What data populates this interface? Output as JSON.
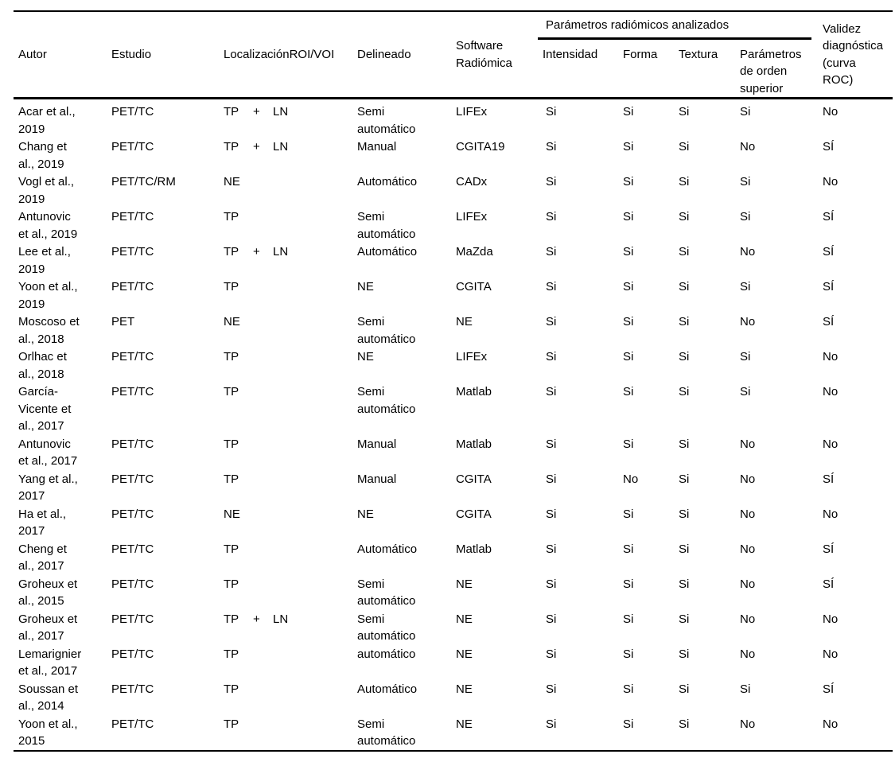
{
  "colors": {
    "text": "#000000",
    "rule": "#000000",
    "background": "#ffffff"
  },
  "table": {
    "headers": {
      "autor": "Autor",
      "estudio": "Estudio",
      "localizacion": "Localización",
      "roi_voi": "ROI/VOI",
      "delineado": "Delineado",
      "software": "Software\nRadiómica",
      "group": "Parámetros radiómicos analizados",
      "intensidad": "Intensidad",
      "forma": "Forma",
      "textura": "Textura",
      "orden_superior": "Parámetros\nde orden\nsuperior",
      "validez": "Validez\ndiagnóstica\n(curva\nROC)"
    },
    "rows": [
      {
        "autor": "Acar et al.,\n2019",
        "estudio": "PET/TC",
        "tp": "TP",
        "plus": "+",
        "ln": "LN",
        "delineado": "Semi\nautomático",
        "software": "LIFEx",
        "intensidad": "Si",
        "forma": "Si",
        "textura": "Si",
        "orden": "Si",
        "validez": "No"
      },
      {
        "autor": "Chang et\nal., 2019",
        "estudio": "PET/TC",
        "tp": "TP",
        "plus": "+",
        "ln": "LN",
        "delineado": "Manual",
        "software": "CGITA19",
        "intensidad": "Si",
        "forma": "Si",
        "textura": "Si",
        "orden": "No",
        "validez": "SÍ"
      },
      {
        "autor": "Vogl et al.,\n2019",
        "estudio": "PET/TC/RM",
        "tp": "NE",
        "plus": "",
        "ln": "",
        "delineado": "Automático",
        "software": "CADx",
        "intensidad": "Si",
        "forma": "Si",
        "textura": "Si",
        "orden": "Si",
        "validez": "No"
      },
      {
        "autor": "Antunovic\net al., 2019",
        "estudio": "PET/TC",
        "tp": "TP",
        "plus": "",
        "ln": "",
        "delineado": "Semi\nautomático",
        "software": "LIFEx",
        "intensidad": "Si",
        "forma": "Si",
        "textura": "Si",
        "orden": "Si",
        "validez": "SÍ"
      },
      {
        "autor": "Lee et al.,\n2019",
        "estudio": "PET/TC",
        "tp": "TP",
        "plus": "+",
        "ln": "LN",
        "delineado": "Automático",
        "software": "MaZda",
        "intensidad": "Si",
        "forma": "Si",
        "textura": "Si",
        "orden": "No",
        "validez": "SÍ"
      },
      {
        "autor": "Yoon et al.,\n2019",
        "estudio": "PET/TC",
        "tp": "TP",
        "plus": "",
        "ln": "",
        "delineado": "NE",
        "software": "CGITA",
        "intensidad": "Si",
        "forma": "Si",
        "textura": "Si",
        "orden": "Si",
        "validez": "SÍ"
      },
      {
        "autor": "Moscoso et\nal., 2018",
        "estudio": "PET",
        "tp": "NE",
        "plus": "",
        "ln": "",
        "delineado": "Semi\nautomático",
        "software": "NE",
        "intensidad": "Si",
        "forma": "Si",
        "textura": "Si",
        "orden": "No",
        "validez": "SÍ"
      },
      {
        "autor": "Orlhac et\nal., 2018",
        "estudio": "PET/TC",
        "tp": "TP",
        "plus": "",
        "ln": "",
        "delineado": "NE",
        "software": "LIFEx",
        "intensidad": "Si",
        "forma": "Si",
        "textura": "Si",
        "orden": "Si",
        "validez": "No"
      },
      {
        "autor": "García-\nVicente et\nal., 2017",
        "estudio": "PET/TC",
        "tp": "TP",
        "plus": "",
        "ln": "",
        "delineado": "Semi\nautomático",
        "software": "Matlab",
        "intensidad": "Si",
        "forma": "Si",
        "textura": "Si",
        "orden": "Si",
        "validez": "No"
      },
      {
        "autor": "Antunovic\net al., 2017",
        "estudio": "PET/TC",
        "tp": "TP",
        "plus": "",
        "ln": "",
        "delineado": "Manual",
        "software": "Matlab",
        "intensidad": "Si",
        "forma": "Si",
        "textura": "Si",
        "orden": "No",
        "validez": "No"
      },
      {
        "autor": "Yang et al.,\n2017",
        "estudio": "PET/TC",
        "tp": "TP",
        "plus": "",
        "ln": "",
        "delineado": "Manual",
        "software": "CGITA",
        "intensidad": "Si",
        "forma": "No",
        "textura": "Si",
        "orden": "No",
        "validez": "SÍ"
      },
      {
        "autor": "Ha et al.,\n2017",
        "estudio": "PET/TC",
        "tp": "NE",
        "plus": "",
        "ln": "",
        "delineado": "NE",
        "software": "CGITA",
        "intensidad": "Si",
        "forma": "Si",
        "textura": "Si",
        "orden": "No",
        "validez": "No"
      },
      {
        "autor": "Cheng et\nal., 2017",
        "estudio": "PET/TC",
        "tp": "TP",
        "plus": "",
        "ln": "",
        "delineado": "Automático",
        "software": "Matlab",
        "intensidad": "Si",
        "forma": "Si",
        "textura": "Si",
        "orden": "No",
        "validez": "SÍ"
      },
      {
        "autor": "Groheux et\nal., 2015",
        "estudio": "PET/TC",
        "tp": "TP",
        "plus": "",
        "ln": "",
        "delineado": "Semi\nautomático",
        "software": "NE",
        "intensidad": "Si",
        "forma": "Si",
        "textura": "Si",
        "orden": "No",
        "validez": "SÍ"
      },
      {
        "autor": "Groheux et\nal., 2017",
        "estudio": "PET/TC",
        "tp": "TP",
        "plus": "+",
        "ln": "LN",
        "delineado": "Semi\nautomático",
        "software": "NE",
        "intensidad": "Si",
        "forma": "Si",
        "textura": "Si",
        "orden": "No",
        "validez": "No"
      },
      {
        "autor": "Lemarignier\net al., 2017",
        "estudio": "PET/TC",
        "tp": "TP",
        "plus": "",
        "ln": "",
        "delineado": "automático",
        "software": "NE",
        "intensidad": "Si",
        "forma": "Si",
        "textura": "Si",
        "orden": "No",
        "validez": "No"
      },
      {
        "autor": "Soussan et\nal., 2014",
        "estudio": "PET/TC",
        "tp": "TP",
        "plus": "",
        "ln": "",
        "delineado": "Automático",
        "software": "NE",
        "intensidad": "Si",
        "forma": "Si",
        "textura": "Si",
        "orden": "Si",
        "validez": "SÍ"
      },
      {
        "autor": "Yoon et al.,\n2015",
        "estudio": "PET/TC",
        "tp": "TP",
        "plus": "",
        "ln": "",
        "delineado": "Semi\nautomático",
        "software": "NE",
        "intensidad": "Si",
        "forma": "Si",
        "textura": "Si",
        "orden": "No",
        "validez": "No"
      }
    ]
  }
}
